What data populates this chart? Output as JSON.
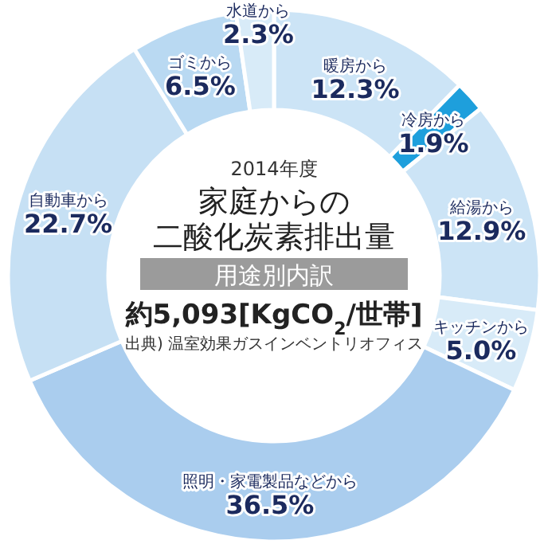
{
  "chart_data": {
    "type": "donut",
    "title": "家庭からの二酸化炭素排出量",
    "subtitle": "用途別内訳",
    "annotations": [
      "2014年度",
      "約5,093[KgCO$_{2}$/世帯]",
      "出典) 温室効果ガスインベントリオフィス"
    ],
    "categories": [
      "暖房から",
      "冷房から",
      "給湯から",
      "キッチンから",
      "照明・家電製品などから",
      "自動車から",
      "ゴミから",
      "水道から"
    ],
    "values": [
      12.3,
      1.9,
      12.9,
      5.0,
      36.5,
      22.7,
      6.5,
      2.3
    ],
    "value_labels": [
      "12.3%",
      "1.9%",
      "12.9%",
      "5.0%",
      "36.5%",
      "22.7%",
      "6.5%",
      "2.3%"
    ],
    "colors": [
      "#cce4f6",
      "#1e9fdc",
      "#cce4f6",
      "#d8ebf8",
      "#aacdee",
      "#c6e0f4",
      "#b9d9f2",
      "#d8ebf8"
    ]
  }
}
